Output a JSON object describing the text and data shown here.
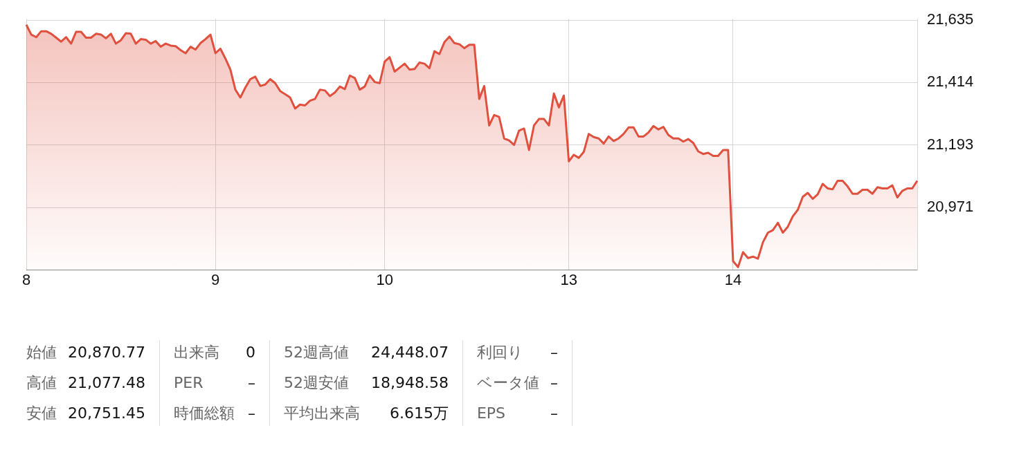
{
  "chart_data": {
    "type": "area",
    "color": "#e0503f",
    "grid": true,
    "categories": [
      "8",
      null,
      null,
      null,
      null,
      null,
      null,
      null,
      null,
      null,
      null,
      null,
      null,
      null,
      null,
      null,
      null,
      null,
      null,
      null,
      null,
      null,
      null,
      null,
      null,
      null,
      null,
      null,
      null,
      null,
      null,
      null,
      null,
      null,
      null,
      null,
      null,
      null,
      "9",
      null,
      null,
      null,
      null,
      null,
      null,
      null,
      null,
      null,
      null,
      null,
      null,
      null,
      null,
      null,
      null,
      null,
      null,
      null,
      null,
      null,
      null,
      null,
      null,
      null,
      null,
      null,
      null,
      null,
      null,
      null,
      null,
      null,
      "10",
      null,
      null,
      null,
      null,
      null,
      null,
      null,
      null,
      null,
      null,
      null,
      null,
      null,
      null,
      null,
      null,
      null,
      null,
      null,
      null,
      null,
      null,
      null,
      null,
      null,
      null,
      null,
      null,
      null,
      null,
      null,
      null,
      null,
      null,
      null,
      null,
      "13",
      null,
      null,
      null,
      null,
      null,
      null,
      null,
      null,
      null,
      null,
      null,
      null,
      null,
      null,
      null,
      null,
      null,
      null,
      null,
      null,
      null,
      null,
      null,
      null,
      null,
      null,
      null,
      null,
      null,
      null,
      null,
      null,
      "14",
      null,
      null,
      null,
      null,
      null,
      null,
      null,
      null,
      null,
      null,
      null,
      null,
      null,
      null,
      null,
      null,
      null,
      null,
      null,
      null,
      null,
      null,
      null,
      null,
      null,
      null,
      null,
      null,
      null,
      null,
      null,
      null,
      null,
      null,
      null,
      null,
      null
    ],
    "ylim": [
      20751,
      21640
    ],
    "yticks": [
      {
        "value": 20971,
        "label": "20,971"
      },
      {
        "value": 21193,
        "label": "21,193"
      },
      {
        "value": 21414,
        "label": "21,414"
      },
      {
        "value": 21635,
        "label": "21,635"
      }
    ],
    "values": [
      21619,
      21584,
      21575,
      21596,
      21596,
      21587,
      21573,
      21559,
      21575,
      21552,
      21594,
      21594,
      21573,
      21573,
      21587,
      21584,
      21571,
      21587,
      21552,
      21564,
      21589,
      21587,
      21552,
      21568,
      21566,
      21552,
      21561,
      21541,
      21552,
      21545,
      21543,
      21529,
      21518,
      21541,
      21531,
      21554,
      21568,
      21584,
      21518,
      21534,
      21499,
      21460,
      21389,
      21361,
      21396,
      21426,
      21435,
      21402,
      21407,
      21426,
      21412,
      21384,
      21373,
      21361,
      21322,
      21336,
      21333,
      21350,
      21356,
      21389,
      21386,
      21366,
      21379,
      21400,
      21391,
      21439,
      21430,
      21389,
      21400,
      21439,
      21416,
      21412,
      21488,
      21504,
      21453,
      21467,
      21481,
      21460,
      21462,
      21485,
      21481,
      21465,
      21525,
      21515,
      21557,
      21577,
      21554,
      21550,
      21536,
      21548,
      21548,
      21356,
      21402,
      21262,
      21299,
      21292,
      21216,
      21209,
      21193,
      21244,
      21251,
      21175,
      21262,
      21285,
      21285,
      21262,
      21375,
      21326,
      21368,
      21135,
      21158,
      21147,
      21168,
      21232,
      21221,
      21216,
      21198,
      21223,
      21207,
      21216,
      21232,
      21255,
      21255,
      21223,
      21223,
      21237,
      21260,
      21248,
      21257,
      21228,
      21216,
      21216,
      21205,
      21214,
      21200,
      21170,
      21161,
      21165,
      21154,
      21154,
      21175,
      21175,
      20781,
      20760,
      20813,
      20792,
      20797,
      20790,
      20848,
      20882,
      20891,
      20917,
      20882,
      20903,
      20940,
      20963,
      21009,
      21023,
      21002,
      21018,
      21055,
      21039,
      21036,
      21066,
      21066,
      21046,
      21020,
      21020,
      21034,
      21034,
      21020,
      21043,
      21039,
      21039,
      21050,
      21007,
      21030,
      21039,
      21039,
      21066
    ],
    "annotations": [
      "始値",
      "20,870.77",
      "高値",
      "21,077.48",
      "安値",
      "20,751.45",
      "出来高",
      "0",
      "PER",
      "–",
      "時価総額",
      "–",
      "52週高値",
      "24,448.07",
      "52週安値",
      "18,948.58",
      "平均出来高",
      "6.615万",
      "利回り",
      "–",
      "ベータ値",
      "–",
      "EPS",
      "–"
    ]
  }
}
